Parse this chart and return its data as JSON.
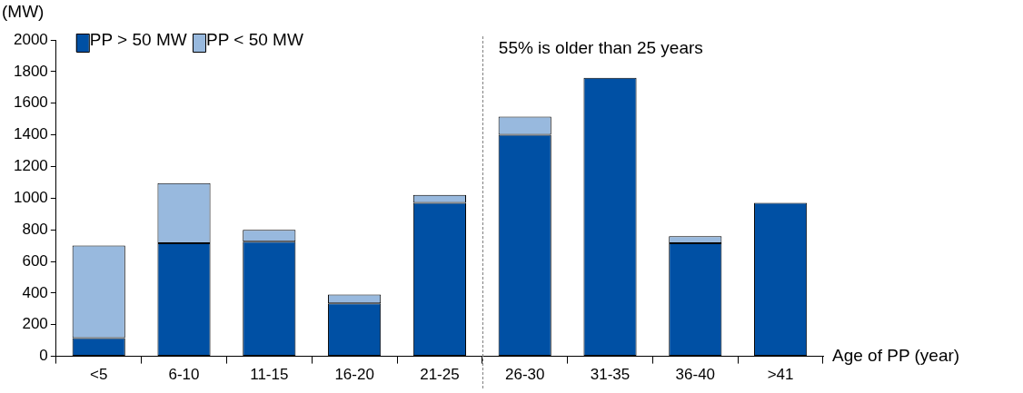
{
  "chart_data": {
    "type": "bar",
    "stacked": true,
    "ylabel": "(MW)",
    "xlabel": "Age of PP (year)",
    "categories": [
      "<5",
      "6-10",
      "11-15",
      "16-20",
      "21-25",
      "26-30",
      "31-35",
      "36-40",
      ">41"
    ],
    "series": [
      {
        "name": "PP > 50 MW",
        "color": "#0050a4",
        "values": [
          115,
          715,
          725,
          335,
          970,
          1400,
          1760,
          715,
          970
        ]
      },
      {
        "name": "PP < 50 MW",
        "color": "#98b9de",
        "values": [
          585,
          380,
          75,
          55,
          50,
          115,
          0,
          45,
          0
        ]
      }
    ],
    "ylim": [
      0,
      2000
    ],
    "yticks": [
      0,
      200,
      400,
      600,
      800,
      1000,
      1200,
      1400,
      1600,
      1800,
      2000
    ],
    "grid": false,
    "legend": "top left",
    "annotations": [
      "55% is older than 25 years"
    ]
  }
}
